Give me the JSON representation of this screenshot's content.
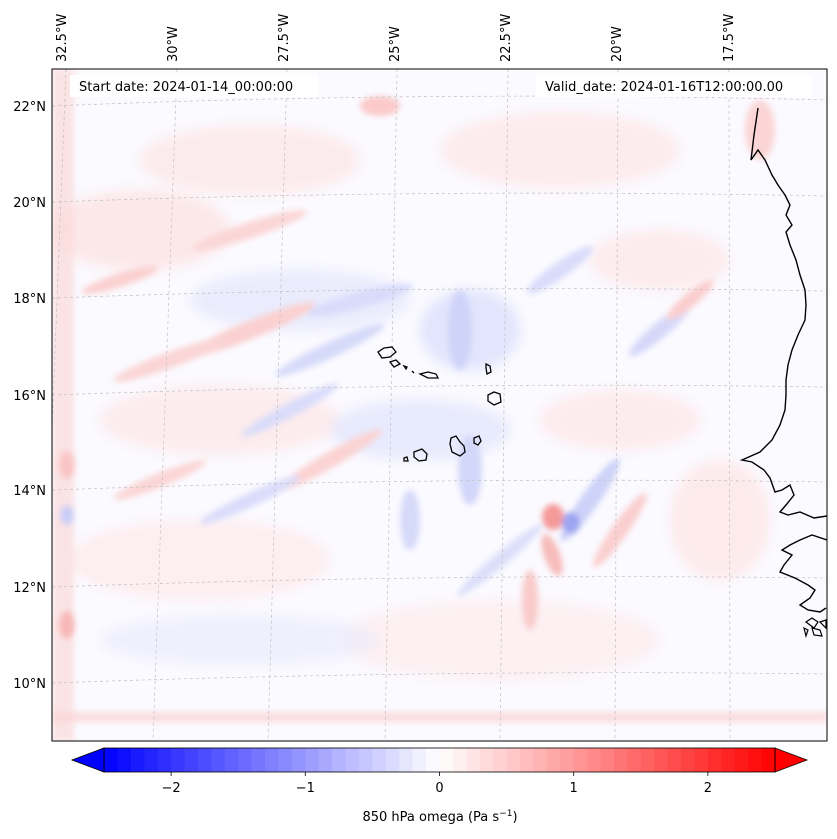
{
  "header": {
    "start_label": "Start date: 2024-01-14_00:00:00",
    "valid_label": "Valid_date: 2024-01-16T12:00:00.00"
  },
  "map": {
    "projection": "lambert-conformal",
    "lon_ticks": [
      "32.5°W",
      "30°W",
      "27.5°W",
      "25°W",
      "22.5°W",
      "20°W",
      "17.5°W"
    ],
    "lat_ticks": [
      "22°N",
      "20°N",
      "18°N",
      "16°N",
      "14°N",
      "12°N",
      "10°N"
    ],
    "coastline_color": "#000000",
    "gridline_color": "#bfbfbf",
    "field": "850 hPa omega"
  },
  "colorbar": {
    "label": "850 hPa omega (Pa s",
    "label_superscript": "−1",
    "label_close": ")",
    "tick_labels": [
      "−2",
      "−1",
      "0",
      "1",
      "2"
    ],
    "tick_values": [
      -2,
      -1,
      0,
      1,
      2
    ],
    "range": [
      -2.5,
      2.5
    ],
    "extend": "both",
    "colormap": "bwr",
    "color_min": "#0000ff",
    "color_mid": "#ffffff",
    "color_max": "#ff0000"
  }
}
